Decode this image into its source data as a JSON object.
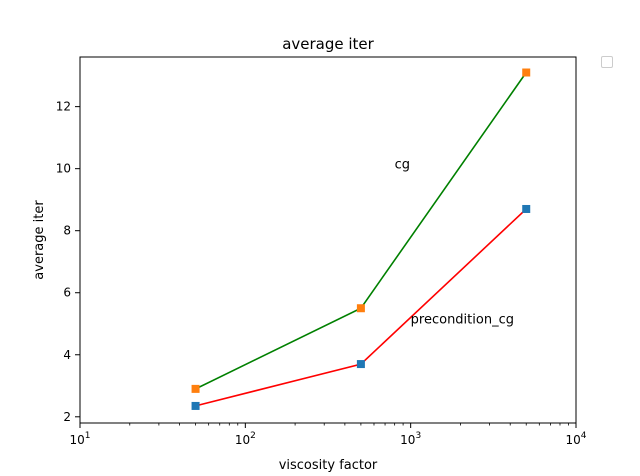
{
  "chart_data": {
    "type": "line",
    "title": "average iter",
    "xlabel": "viscosity factor",
    "ylabel": "average iter",
    "xscale": "log",
    "xlim": [
      10,
      10000
    ],
    "ylim": [
      1.8,
      13.6
    ],
    "x_ticks": [
      {
        "value": 10,
        "base": "10",
        "exp": "1"
      },
      {
        "value": 100,
        "base": "10",
        "exp": "2"
      },
      {
        "value": 1000,
        "base": "10",
        "exp": "3"
      },
      {
        "value": 10000,
        "base": "10",
        "exp": "4"
      }
    ],
    "y_ticks": [
      2,
      4,
      6,
      8,
      10,
      12
    ],
    "grid": false,
    "legend": {
      "placement": "outside top-right",
      "entries": []
    },
    "series": [
      {
        "name": "cg",
        "line_color": "#008000",
        "marker_color": "#ff7f0e",
        "marker": "square",
        "x": [
          50,
          500,
          5000
        ],
        "y": [
          2.9,
          5.5,
          13.1
        ]
      },
      {
        "name": "precondition_cg",
        "line_color": "#ff0000",
        "marker_color": "#1f77b4",
        "marker": "square",
        "x": [
          50,
          500,
          5000
        ],
        "y": [
          2.35,
          3.7,
          8.7
        ]
      }
    ],
    "annotations": [
      {
        "text": "cg",
        "x": 800,
        "y": 10
      },
      {
        "text": "precondition_cg",
        "x": 1000,
        "y": 5
      }
    ]
  }
}
